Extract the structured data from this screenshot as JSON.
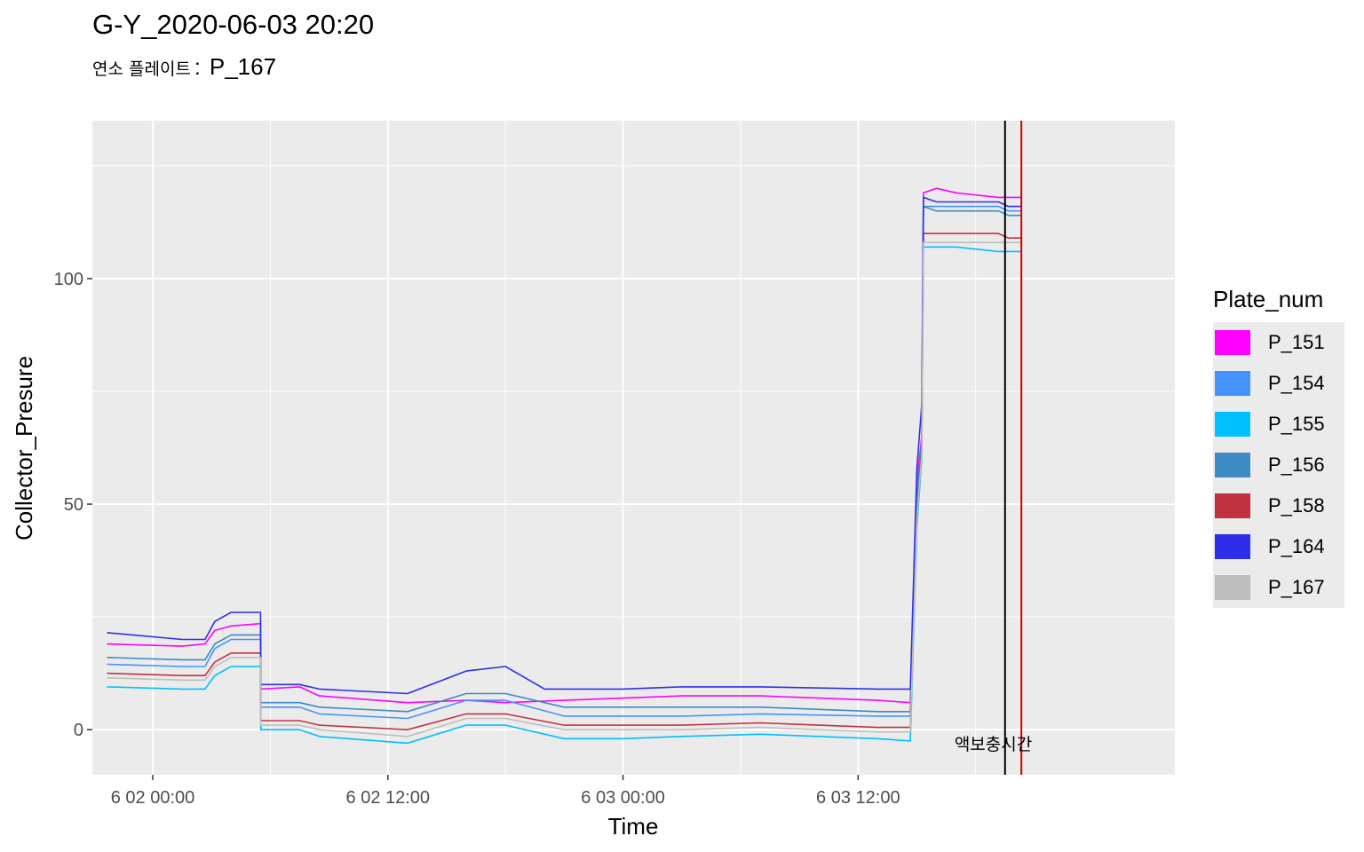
{
  "title": "G-Y_2020-06-03 20:20",
  "subtitle": {
    "label": "연소 플레이트",
    "separator": ":",
    "value": "P_167"
  },
  "chart_data": {
    "type": "line",
    "xlabel": "Time",
    "ylabel": "Collector_Presure",
    "xlim": [
      "2020-06-01 20:55",
      "2020-06-04 04:10"
    ],
    "ylim": [
      -10,
      135
    ],
    "x_ticks": [
      {
        "t": "2020-06-02 00:00",
        "label": "6 02 00:00"
      },
      {
        "t": "2020-06-02 12:00",
        "label": "6 02 12:00"
      },
      {
        "t": "2020-06-03 00:00",
        "label": "6 03 00:00"
      },
      {
        "t": "2020-06-03 12:00",
        "label": "6 03 12:00"
      }
    ],
    "x_minor_ticks": [
      "2020-06-01 18:00",
      "2020-06-02 06:00",
      "2020-06-02 18:00",
      "2020-06-03 06:00",
      "2020-06-03 18:00"
    ],
    "y_ticks": [
      0,
      50,
      100
    ],
    "y_minor_ticks": [
      25,
      75,
      125
    ],
    "grid": true,
    "legend": {
      "title": "Plate_num",
      "position": "right"
    },
    "annotations": [
      {
        "type": "vline",
        "x": "2020-06-03 19:30",
        "color": "#000000"
      },
      {
        "type": "vline",
        "x": "2020-06-03 20:20",
        "color": "#cc0000"
      },
      {
        "type": "text",
        "text": "액보충시간",
        "x": "2020-06-03 18:54",
        "y": -4.5
      }
    ],
    "series": [
      {
        "name": "P_151",
        "color": "#ff00ff",
        "points": [
          [
            "2020-06-01 21:40",
            19
          ],
          [
            "2020-06-02 01:30",
            18.5
          ],
          [
            "2020-06-02 02:40",
            19
          ],
          [
            "2020-06-02 03:10",
            22
          ],
          [
            "2020-06-02 04:00",
            23
          ],
          [
            "2020-06-02 05:30",
            23.5
          ],
          [
            "2020-06-02 05:31",
            9
          ],
          [
            "2020-06-02 07:30",
            9.5
          ],
          [
            "2020-06-02 08:30",
            7.5
          ],
          [
            "2020-06-02 13:00",
            6
          ],
          [
            "2020-06-02 16:00",
            6.5
          ],
          [
            "2020-06-02 18:00",
            6
          ],
          [
            "2020-06-02 21:00",
            6.5
          ],
          [
            "2020-06-02 24:00",
            7
          ],
          [
            "2020-06-03 03:00",
            7.5
          ],
          [
            "2020-06-03 07:00",
            7.5
          ],
          [
            "2020-06-03 13:00",
            6.5
          ],
          [
            "2020-06-03 14:40",
            6
          ],
          [
            "2020-06-03 15:00",
            55
          ],
          [
            "2020-06-03 15:15",
            65
          ],
          [
            "2020-06-03 15:20",
            119
          ],
          [
            "2020-06-03 16:00",
            120
          ],
          [
            "2020-06-03 17:00",
            119
          ],
          [
            "2020-06-03 19:10",
            118
          ],
          [
            "2020-06-03 19:40",
            118
          ],
          [
            "2020-06-03 20:20",
            118
          ]
        ]
      },
      {
        "name": "P_154",
        "color": "#4592ff",
        "points": [
          [
            "2020-06-01 21:40",
            14.5
          ],
          [
            "2020-06-02 01:30",
            14
          ],
          [
            "2020-06-02 02:40",
            14
          ],
          [
            "2020-06-02 03:10",
            18
          ],
          [
            "2020-06-02 04:00",
            20
          ],
          [
            "2020-06-02 05:30",
            20
          ],
          [
            "2020-06-02 05:31",
            5
          ],
          [
            "2020-06-02 07:30",
            5
          ],
          [
            "2020-06-02 08:30",
            3.5
          ],
          [
            "2020-06-02 13:00",
            2.5
          ],
          [
            "2020-06-02 16:00",
            6.5
          ],
          [
            "2020-06-02 18:00",
            6.5
          ],
          [
            "2020-06-02 21:00",
            3
          ],
          [
            "2020-06-02 24:00",
            3
          ],
          [
            "2020-06-03 03:00",
            3
          ],
          [
            "2020-06-03 07:00",
            3.5
          ],
          [
            "2020-06-03 13:00",
            3
          ],
          [
            "2020-06-03 14:40",
            3
          ],
          [
            "2020-06-03 15:00",
            50
          ],
          [
            "2020-06-03 15:15",
            62
          ],
          [
            "2020-06-03 15:20",
            116
          ],
          [
            "2020-06-03 16:00",
            116
          ],
          [
            "2020-06-03 17:00",
            116
          ],
          [
            "2020-06-03 19:10",
            116
          ],
          [
            "2020-06-03 19:40",
            115
          ],
          [
            "2020-06-03 20:20",
            115
          ]
        ]
      },
      {
        "name": "P_155",
        "color": "#00bfff",
        "points": [
          [
            "2020-06-01 21:40",
            9.5
          ],
          [
            "2020-06-02 01:30",
            9
          ],
          [
            "2020-06-02 02:40",
            9
          ],
          [
            "2020-06-02 03:10",
            12
          ],
          [
            "2020-06-02 04:00",
            14
          ],
          [
            "2020-06-02 05:30",
            14
          ],
          [
            "2020-06-02 05:31",
            0
          ],
          [
            "2020-06-02 07:30",
            0
          ],
          [
            "2020-06-02 08:30",
            -1.5
          ],
          [
            "2020-06-02 13:00",
            -3
          ],
          [
            "2020-06-02 16:00",
            1
          ],
          [
            "2020-06-02 18:00",
            1
          ],
          [
            "2020-06-02 21:00",
            -2
          ],
          [
            "2020-06-02 24:00",
            -2
          ],
          [
            "2020-06-03 03:00",
            -1.5
          ],
          [
            "2020-06-03 07:00",
            -1
          ],
          [
            "2020-06-03 13:00",
            -2
          ],
          [
            "2020-06-03 14:40",
            -2.5
          ],
          [
            "2020-06-03 15:00",
            45
          ],
          [
            "2020-06-03 15:15",
            60
          ],
          [
            "2020-06-03 15:20",
            107
          ],
          [
            "2020-06-03 16:00",
            107
          ],
          [
            "2020-06-03 17:00",
            107
          ],
          [
            "2020-06-03 19:10",
            106
          ],
          [
            "2020-06-03 19:40",
            106
          ],
          [
            "2020-06-03 20:20",
            106
          ]
        ]
      },
      {
        "name": "P_156",
        "color": "#3d8ac5",
        "points": [
          [
            "2020-06-01 21:40",
            16
          ],
          [
            "2020-06-02 01:30",
            15.5
          ],
          [
            "2020-06-02 02:40",
            15.5
          ],
          [
            "2020-06-02 03:10",
            19
          ],
          [
            "2020-06-02 04:00",
            21
          ],
          [
            "2020-06-02 05:30",
            21
          ],
          [
            "2020-06-02 05:31",
            6
          ],
          [
            "2020-06-02 07:30",
            6
          ],
          [
            "2020-06-02 08:30",
            5
          ],
          [
            "2020-06-02 13:00",
            4
          ],
          [
            "2020-06-02 16:00",
            8
          ],
          [
            "2020-06-02 18:00",
            8
          ],
          [
            "2020-06-02 21:00",
            5
          ],
          [
            "2020-06-02 24:00",
            5
          ],
          [
            "2020-06-03 03:00",
            5
          ],
          [
            "2020-06-03 07:00",
            5
          ],
          [
            "2020-06-03 13:00",
            4
          ],
          [
            "2020-06-03 14:40",
            4
          ],
          [
            "2020-06-03 15:00",
            52
          ],
          [
            "2020-06-03 15:15",
            64
          ],
          [
            "2020-06-03 15:20",
            116
          ],
          [
            "2020-06-03 16:00",
            115
          ],
          [
            "2020-06-03 17:00",
            115
          ],
          [
            "2020-06-03 19:10",
            115
          ],
          [
            "2020-06-03 19:40",
            114
          ],
          [
            "2020-06-03 20:20",
            114
          ]
        ]
      },
      {
        "name": "P_158",
        "color": "#c13241",
        "points": [
          [
            "2020-06-01 21:40",
            12.5
          ],
          [
            "2020-06-02 01:30",
            12
          ],
          [
            "2020-06-02 02:40",
            12
          ],
          [
            "2020-06-02 03:10",
            15
          ],
          [
            "2020-06-02 04:00",
            17
          ],
          [
            "2020-06-02 05:30",
            17
          ],
          [
            "2020-06-02 05:31",
            2
          ],
          [
            "2020-06-02 07:30",
            2
          ],
          [
            "2020-06-02 08:30",
            1
          ],
          [
            "2020-06-02 13:00",
            0
          ],
          [
            "2020-06-02 16:00",
            3.5
          ],
          [
            "2020-06-02 18:00",
            3.5
          ],
          [
            "2020-06-02 21:00",
            1
          ],
          [
            "2020-06-02 24:00",
            1
          ],
          [
            "2020-06-03 03:00",
            1
          ],
          [
            "2020-06-03 07:00",
            1.5
          ],
          [
            "2020-06-03 13:00",
            0.5
          ],
          [
            "2020-06-03 14:40",
            0.5
          ],
          [
            "2020-06-03 15:00",
            48
          ],
          [
            "2020-06-03 15:15",
            62
          ],
          [
            "2020-06-03 15:20",
            110
          ],
          [
            "2020-06-03 16:00",
            110
          ],
          [
            "2020-06-03 17:00",
            110
          ],
          [
            "2020-06-03 19:10",
            110
          ],
          [
            "2020-06-03 19:40",
            109
          ],
          [
            "2020-06-03 20:20",
            109
          ]
        ]
      },
      {
        "name": "P_164",
        "color": "#2e2ee8",
        "points": [
          [
            "2020-06-01 21:40",
            21.5
          ],
          [
            "2020-06-02 01:30",
            20
          ],
          [
            "2020-06-02 02:40",
            20
          ],
          [
            "2020-06-02 03:10",
            24
          ],
          [
            "2020-06-02 04:00",
            26
          ],
          [
            "2020-06-02 05:30",
            26
          ],
          [
            "2020-06-02 05:31",
            10
          ],
          [
            "2020-06-02 07:30",
            10
          ],
          [
            "2020-06-02 08:30",
            9
          ],
          [
            "2020-06-02 13:00",
            8
          ],
          [
            "2020-06-02 16:00",
            13
          ],
          [
            "2020-06-02 18:00",
            14
          ],
          [
            "2020-06-02 20:00",
            9
          ],
          [
            "2020-06-02 24:00",
            9
          ],
          [
            "2020-06-03 03:00",
            9.5
          ],
          [
            "2020-06-03 07:00",
            9.5
          ],
          [
            "2020-06-03 13:00",
            9
          ],
          [
            "2020-06-03 14:40",
            9
          ],
          [
            "2020-06-03 15:00",
            58
          ],
          [
            "2020-06-03 15:15",
            72
          ],
          [
            "2020-06-03 15:20",
            118
          ],
          [
            "2020-06-03 16:00",
            117
          ],
          [
            "2020-06-03 17:00",
            117
          ],
          [
            "2020-06-03 19:10",
            117
          ],
          [
            "2020-06-03 19:40",
            116
          ],
          [
            "2020-06-03 20:20",
            116
          ]
        ]
      },
      {
        "name": "P_167",
        "color": "#bebebe",
        "points": [
          [
            "2020-06-01 21:40",
            11.5
          ],
          [
            "2020-06-02 01:30",
            11
          ],
          [
            "2020-06-02 02:40",
            11
          ],
          [
            "2020-06-02 03:10",
            14
          ],
          [
            "2020-06-02 04:00",
            16
          ],
          [
            "2020-06-02 05:30",
            16
          ],
          [
            "2020-06-02 05:31",
            1
          ],
          [
            "2020-06-02 07:30",
            1
          ],
          [
            "2020-06-02 08:30",
            0
          ],
          [
            "2020-06-02 13:00",
            -1.5
          ],
          [
            "2020-06-02 16:00",
            2.5
          ],
          [
            "2020-06-02 18:00",
            2.5
          ],
          [
            "2020-06-02 21:00",
            0
          ],
          [
            "2020-06-02 24:00",
            0
          ],
          [
            "2020-06-03 03:00",
            0
          ],
          [
            "2020-06-03 07:00",
            0.5
          ],
          [
            "2020-06-03 13:00",
            -0.5
          ],
          [
            "2020-06-03 14:40",
            -0.5
          ],
          [
            "2020-06-03 15:00",
            47
          ],
          [
            "2020-06-03 15:15",
            61
          ],
          [
            "2020-06-03 15:20",
            108
          ],
          [
            "2020-06-03 16:00",
            108
          ],
          [
            "2020-06-03 17:00",
            108
          ],
          [
            "2020-06-03 19:10",
            108
          ],
          [
            "2020-06-03 19:40",
            108
          ],
          [
            "2020-06-03 20:20",
            108
          ]
        ]
      }
    ]
  }
}
